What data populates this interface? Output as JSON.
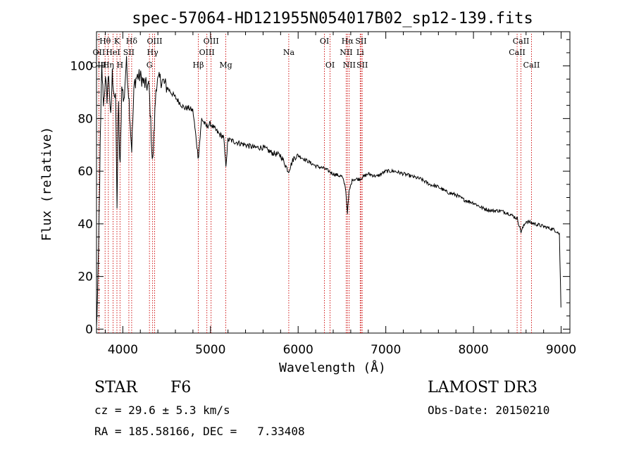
{
  "chart_data": {
    "type": "line",
    "title": "spec-57064-HD121955N054017B02_sp12-139.fits",
    "xlabel": "Wavelength (Å)",
    "ylabel": "Flux (relative)",
    "xlim": [
      3700,
      9100
    ],
    "ylim": [
      -1.5,
      113
    ],
    "xticks": [
      "4000",
      "5000",
      "6000",
      "7000",
      "8000",
      "9000"
    ],
    "yticks": [
      "0",
      "20",
      "40",
      "60",
      "80",
      "100"
    ],
    "xtick_values": [
      4000,
      5000,
      6000,
      7000,
      8000,
      9000
    ],
    "ytick_values": [
      0,
      20,
      40,
      60,
      80,
      100
    ],
    "grid": false,
    "series": [
      {
        "name": "spectrum",
        "x": [
          3700,
          3720,
          3740,
          3760,
          3780,
          3800,
          3820,
          3840,
          3860,
          3880,
          3900,
          3920,
          3933,
          3950,
          3968,
          3990,
          4010,
          4040,
          4070,
          4101,
          4130,
          4160,
          4200,
          4250,
          4300,
          4340,
          4380,
          4420,
          4460,
          4500,
          4550,
          4600,
          4650,
          4700,
          4750,
          4800,
          4861,
          4900,
          4950,
          5000,
          5050,
          5100,
          5150,
          5175,
          5200,
          5300,
          5400,
          5500,
          5600,
          5700,
          5800,
          5890,
          5950,
          6000,
          6100,
          6200,
          6300,
          6400,
          6500,
          6540,
          6563,
          6580,
          6620,
          6700,
          6800,
          6900,
          7000,
          7100,
          7200,
          7300,
          7400,
          7500,
          7600,
          7700,
          7800,
          7900,
          8000,
          8100,
          8200,
          8300,
          8400,
          8500,
          8542,
          8600,
          8700,
          8800,
          8900,
          8960,
          8980,
          9000
        ],
        "y": [
          0,
          22,
          65,
          100,
          85,
          95,
          88,
          98,
          78,
          97,
          90,
          86,
          45,
          88,
          58,
          95,
          85,
          102,
          88,
          68,
          93,
          96,
          96,
          93,
          92,
          62,
          93,
          95,
          94,
          92,
          90,
          88,
          86,
          84,
          84,
          83,
          65,
          80,
          77,
          78,
          76,
          74,
          73,
          62,
          72,
          71,
          70,
          69,
          69,
          67,
          66,
          60,
          65,
          66,
          64,
          62,
          61,
          59,
          58,
          54,
          44,
          52,
          57,
          57,
          59,
          58,
          60,
          60,
          59,
          58,
          57,
          55,
          54,
          52,
          51,
          49,
          48,
          46,
          45,
          45,
          44,
          42,
          37,
          41,
          40,
          39,
          38,
          37,
          36,
          5
        ]
      }
    ],
    "line_markers": [
      {
        "label": "Hθ",
        "x": 3798,
        "row": 1
      },
      {
        "label": "OII",
        "x": 3727,
        "row": 2
      },
      {
        "label": "OIII",
        "x": 3727,
        "row": 3
      },
      {
        "label": "Hη",
        "x": 3835,
        "row": 3
      },
      {
        "label": "HeI",
        "x": 3889,
        "row": 2
      },
      {
        "label": "K",
        "x": 3933,
        "row": 1
      },
      {
        "label": "H",
        "x": 3968,
        "row": 3
      },
      {
        "label": "Hδ",
        "x": 4101,
        "row": 1
      },
      {
        "label": "SII",
        "x": 4069,
        "row": 2
      },
      {
        "label": "OIII",
        "x": 4363,
        "row": 1
      },
      {
        "label": "Hγ",
        "x": 4340,
        "row": 2
      },
      {
        "label": "G",
        "x": 4304,
        "row": 3
      },
      {
        "label": "Hβ",
        "x": 4861,
        "row": 3
      },
      {
        "label": "OIII",
        "x": 4959,
        "row": 2
      },
      {
        "label": "OIII",
        "x": 5007,
        "row": 1
      },
      {
        "label": "Mg",
        "x": 5175,
        "row": 3
      },
      {
        "label": "Na",
        "x": 5893,
        "row": 2
      },
      {
        "label": "OI",
        "x": 6300,
        "row": 1
      },
      {
        "label": "OI",
        "x": 6364,
        "row": 3
      },
      {
        "label": "Hα",
        "x": 6563,
        "row": 1
      },
      {
        "label": "NII",
        "x": 6548,
        "row": 2
      },
      {
        "label": "NII",
        "x": 6583,
        "row": 3
      },
      {
        "label": "SII",
        "x": 6717,
        "row": 1
      },
      {
        "label": "Li",
        "x": 6708,
        "row": 2
      },
      {
        "label": "SII",
        "x": 6731,
        "row": 3
      },
      {
        "label": "CaII",
        "x": 8498,
        "row": 2
      },
      {
        "label": "CaII",
        "x": 8542,
        "row": 1
      },
      {
        "label": "CaII",
        "x": 8662,
        "row": 3
      }
    ]
  },
  "info": {
    "object_type": "STAR",
    "subclass": "F6",
    "survey": "LAMOST DR3",
    "cz": "cz = 29.6 ± 5.3 km/s",
    "obs_date": "Obs-Date: 20150210",
    "coords": "RA = 185.58166, DEC =   7.33408"
  },
  "colors": {
    "spectrum": "#000000",
    "marker_line": "#cc0000",
    "axis": "#000000"
  }
}
